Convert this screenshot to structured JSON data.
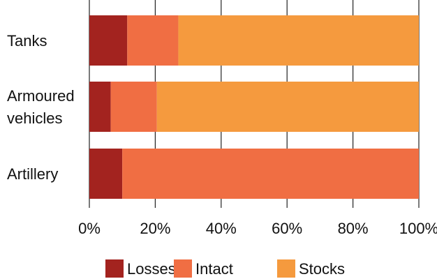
{
  "chart_data": {
    "type": "bar",
    "orientation": "horizontal",
    "stacked": true,
    "categories": [
      [
        "Tanks"
      ],
      [
        "Armoured",
        "vehicles"
      ],
      [
        "Artillery"
      ]
    ],
    "series": [
      {
        "name": "Losses",
        "color": "#A3231F",
        "values": [
          11.5,
          6.5,
          10
        ]
      },
      {
        "name": "Intact",
        "color": "#F06E43",
        "values": [
          15.5,
          14,
          90
        ]
      },
      {
        "name": "Stocks",
        "color": "#F59A3E",
        "values": [
          73,
          79.5,
          0
        ]
      }
    ],
    "x_ticks": [
      "0%",
      "20%",
      "40%",
      "60%",
      "80%",
      "100%"
    ],
    "xlim": [
      0,
      100
    ],
    "grid": true,
    "legend_position": "bottom"
  }
}
